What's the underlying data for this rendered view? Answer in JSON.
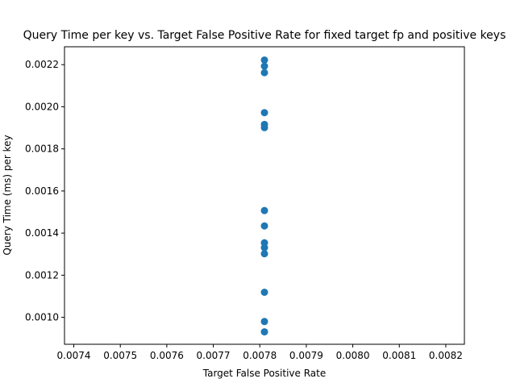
{
  "chart_data": {
    "type": "scatter",
    "title": "Query Time per key vs. Target False Positive Rate for fixed target fp and positive keys",
    "xlabel": "Target False Positive Rate",
    "ylabel": "Query Time (ms) per key",
    "xlim": [
      0.00738,
      0.00824
    ],
    "ylim": [
      0.000872,
      0.002285
    ],
    "x_ticks": [
      "0.0074",
      "0.0075",
      "0.0076",
      "0.0077",
      "0.0078",
      "0.0079",
      "0.0080",
      "0.0081",
      "0.0082"
    ],
    "y_ticks": [
      "0.0010",
      "0.0012",
      "0.0014",
      "0.0016",
      "0.0018",
      "0.0020",
      "0.0022"
    ],
    "grid": false,
    "marker_color": "#1f77b4",
    "points": [
      {
        "x": 0.00781,
        "y": 0.002222
      },
      {
        "x": 0.00781,
        "y": 0.002193
      },
      {
        "x": 0.00781,
        "y": 0.002162
      },
      {
        "x": 0.00781,
        "y": 0.001972
      },
      {
        "x": 0.00781,
        "y": 0.001916
      },
      {
        "x": 0.00781,
        "y": 0.001901
      },
      {
        "x": 0.00781,
        "y": 0.001507
      },
      {
        "x": 0.00781,
        "y": 0.001434
      },
      {
        "x": 0.00781,
        "y": 0.001354
      },
      {
        "x": 0.00781,
        "y": 0.001331
      },
      {
        "x": 0.00781,
        "y": 0.001302
      },
      {
        "x": 0.00781,
        "y": 0.001119
      },
      {
        "x": 0.00781,
        "y": 0.00098
      },
      {
        "x": 0.00781,
        "y": 0.000931
      }
    ]
  }
}
